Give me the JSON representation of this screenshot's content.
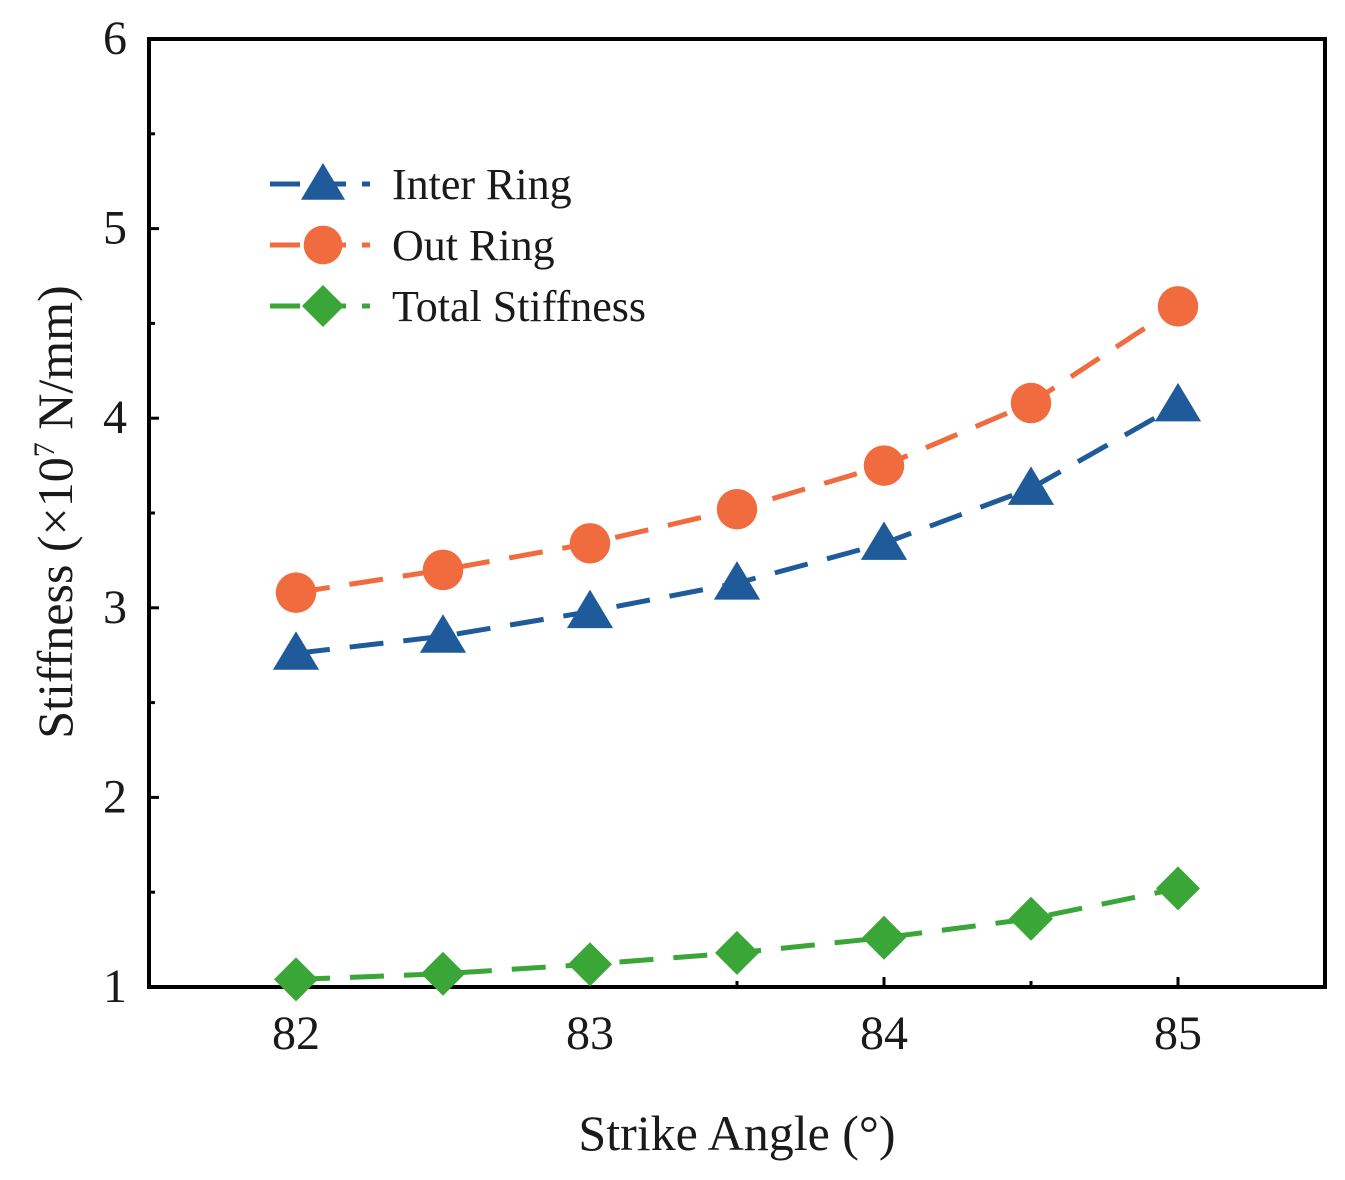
{
  "chart_data": {
    "type": "line",
    "x": [
      82,
      82.5,
      83,
      83.5,
      84,
      84.5,
      85
    ],
    "xlim": [
      81.5,
      85.5
    ],
    "ylim": [
      1,
      6
    ],
    "x_ticks": [
      "82",
      "83",
      "84",
      "85"
    ],
    "y_ticks": [
      "1",
      "2",
      "3",
      "4",
      "5",
      "6"
    ],
    "xlabel": "Strike Angle (°)",
    "ylabel": {
      "prefix": "Stiffness (×10",
      "exponent": "7",
      "suffix": " N/mm)"
    },
    "legend_position": "top-left",
    "series": [
      {
        "name": "Inter Ring",
        "marker": "triangle",
        "color": "#1f5b9a",
        "values": [
          2.76,
          2.85,
          2.98,
          3.13,
          3.34,
          3.63,
          4.07
        ]
      },
      {
        "name": "Out Ring",
        "marker": "circle",
        "color": "#f06b3e",
        "values": [
          3.08,
          3.2,
          3.34,
          3.52,
          3.75,
          4.08,
          4.59
        ]
      },
      {
        "name": "Total Stiffness",
        "marker": "diamond",
        "color": "#3aa637",
        "values": [
          1.04,
          1.07,
          1.12,
          1.18,
          1.26,
          1.36,
          1.52
        ]
      }
    ]
  }
}
